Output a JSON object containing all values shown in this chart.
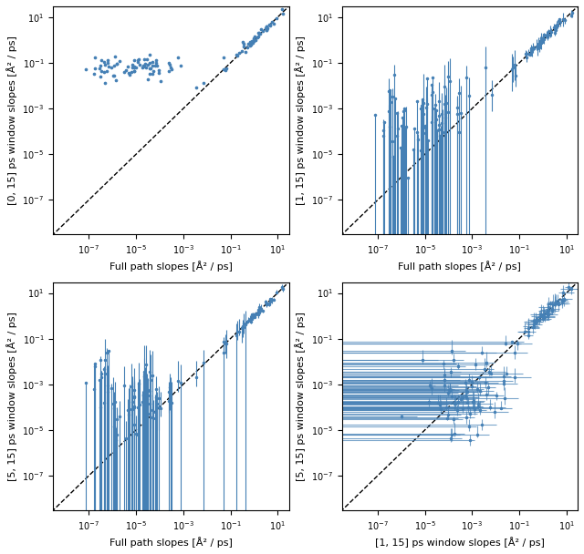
{
  "fig_width": 6.4,
  "fig_height": 6.08,
  "dpi": 100,
  "point_color": "#4580b5",
  "xlim": [
    3e-09,
    30
  ],
  "ylim": [
    3e-09,
    30
  ],
  "subplots": [
    {
      "ylabel": "[0, 15] ps window slopes [Å² / ps]",
      "xlabel": "Full path slopes [Å² / ps]",
      "panel": 0
    },
    {
      "ylabel": "[1, 15] ps window slopes [Å² / ps]",
      "xlabel": "Full path slopes [Å² / ps]",
      "panel": 1
    },
    {
      "ylabel": "[5, 15] ps window slopes [Å² / ps]",
      "xlabel": "Full path slopes [Å² / ps]",
      "panel": 2
    },
    {
      "ylabel": "[5, 15] ps window slopes [Å² / ps]",
      "xlabel": "[1, 15] ps window slopes [Å² / ps]",
      "panel": 3
    }
  ]
}
